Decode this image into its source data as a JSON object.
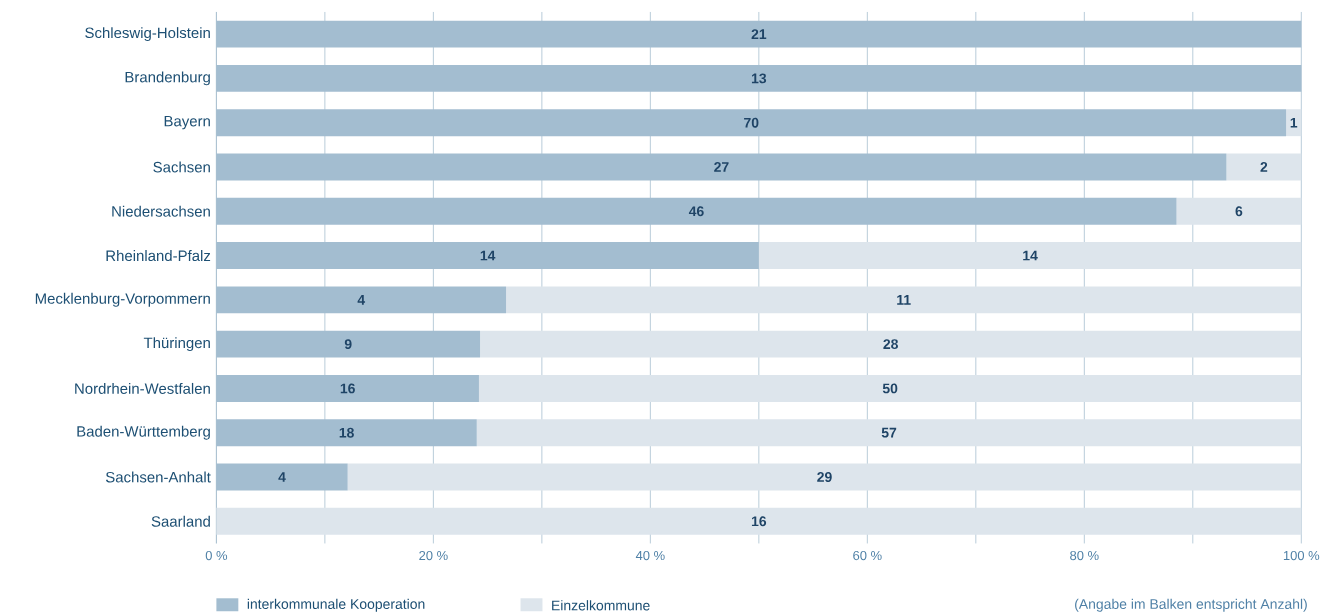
{
  "chart_data": {
    "type": "bar",
    "orientation": "horizontal",
    "stacked": true,
    "categories": [
      "Schleswig-Holstein",
      "Brandenburg",
      "Bayern",
      "Sachsen",
      "Niedersachsen",
      "Rheinland-Pfalz",
      "Mecklenburg-Vorpommern",
      "Thüringen",
      "Nordrhein-Westfalen",
      "Baden-Württemberg",
      "Sachsen-Anhalt",
      "Saarland"
    ],
    "series": [
      {
        "name": "interkommunale Kooperation",
        "color": "#a3bdd0",
        "values": [
          100,
          100,
          98.6,
          93.1,
          88.5,
          50,
          26.7,
          24.3,
          24.2,
          24,
          12.1,
          0
        ]
      },
      {
        "name": "Einzelkommune",
        "color": "#dde5ec",
        "values": [
          0,
          0,
          1.4,
          6.9,
          11.5,
          50,
          73.3,
          75.7,
          75.8,
          76,
          87.9,
          100
        ]
      }
    ],
    "xlim": [
      0,
      100
    ],
    "xticks": [
      {
        "value": 0,
        "label": "0 %"
      },
      {
        "value": 10,
        "label": null
      },
      {
        "value": 20,
        "label": "20 %"
      },
      {
        "value": 30,
        "label": null
      },
      {
        "value": 40,
        "label": "40 %"
      },
      {
        "value": 50,
        "label": null
      },
      {
        "value": 60,
        "label": "60 %"
      },
      {
        "value": 70,
        "label": null
      },
      {
        "value": 80,
        "label": "80 %"
      },
      {
        "value": 90,
        "label": null
      },
      {
        "value": 100,
        "label": "100 %"
      }
    ],
    "grid": "x",
    "legend": "bottom left",
    "annotations": [
      "(Angabe im Balken entspricht Anzahl)",
      "21",
      "13",
      "70",
      "1",
      "27",
      "2",
      "46",
      "6",
      "14",
      "14",
      "4",
      "11",
      "9",
      "28",
      "16",
      "50",
      "18",
      "57",
      "4",
      "29",
      "16"
    ]
  }
}
